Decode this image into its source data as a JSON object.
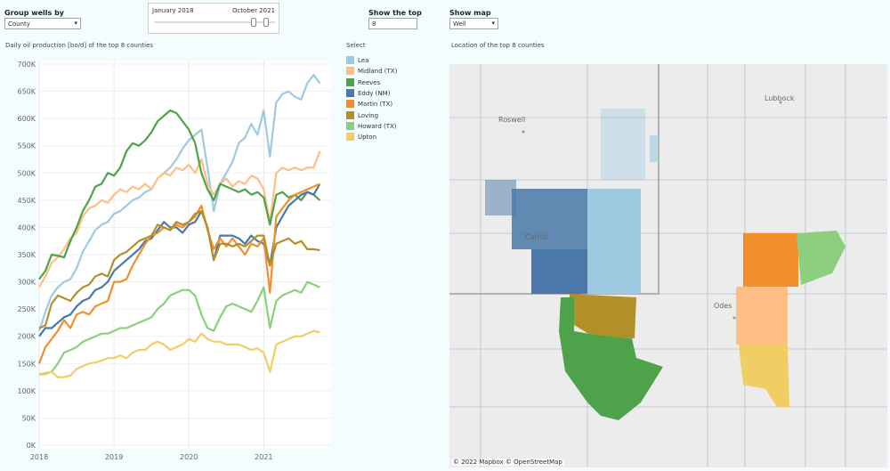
{
  "controls": {
    "group_by": {
      "label": "Group wells by",
      "value": "County"
    },
    "date_range": {
      "start": "January 2018",
      "end": "October 2021",
      "start_fraction": 0.82,
      "end_fraction": 0.93
    },
    "top": {
      "label": "Show the top",
      "value": "8"
    },
    "show_map": {
      "label": "Show map",
      "value": "Well"
    }
  },
  "chart_title": "Daily oil production [bo/d] of the top 8 counties",
  "legend_title": "Select",
  "map_title": "Location of the top 8 counties",
  "map": {
    "attribution": "© 2022 Mapbox  © OpenStreetMap",
    "cities": [
      "Roswell",
      "Lubbock",
      "Carlsb",
      "Odes"
    ]
  },
  "chart_data": {
    "type": "line",
    "title": "Daily oil production [bo/d] of the top 8 counties",
    "ylim": [
      0,
      700000
    ],
    "xlim": [
      2018,
      2021.9
    ],
    "y_ticks": [
      "0K",
      "50K",
      "100K",
      "150K",
      "200K",
      "250K",
      "300K",
      "350K",
      "400K",
      "450K",
      "500K",
      "550K",
      "600K",
      "650K",
      "700K"
    ],
    "x_ticks": [
      "2018",
      "2019",
      "2020",
      "2021"
    ],
    "x": [
      2018.0,
      2018.083,
      2018.167,
      2018.25,
      2018.333,
      2018.417,
      2018.5,
      2018.583,
      2018.667,
      2018.75,
      2018.833,
      2018.917,
      2019.0,
      2019.083,
      2019.167,
      2019.25,
      2019.333,
      2019.417,
      2019.5,
      2019.583,
      2019.667,
      2019.75,
      2019.833,
      2019.917,
      2020.0,
      2020.083,
      2020.167,
      2020.25,
      2020.333,
      2020.417,
      2020.5,
      2020.583,
      2020.667,
      2020.75,
      2020.833,
      2020.917,
      2021.0,
      2021.083,
      2021.167,
      2021.25,
      2021.333,
      2021.417,
      2021.5,
      2021.583,
      2021.667,
      2021.75
    ],
    "series": [
      {
        "name": "Lea",
        "color": "#9ecae1",
        "values": [
          210000,
          245000,
          275000,
          290000,
          300000,
          305000,
          325000,
          355000,
          375000,
          395000,
          405000,
          410000,
          425000,
          430000,
          440000,
          450000,
          455000,
          465000,
          470000,
          490000,
          500000,
          510000,
          525000,
          545000,
          560000,
          570000,
          580000,
          510000,
          430000,
          480000,
          500000,
          520000,
          555000,
          565000,
          590000,
          570000,
          615000,
          530000,
          630000,
          645000,
          650000,
          640000,
          635000,
          665000,
          680000,
          665000
        ]
      },
      {
        "name": "Midland (TX)",
        "color": "#fdbf85",
        "values": [
          290000,
          310000,
          335000,
          345000,
          360000,
          380000,
          390000,
          420000,
          435000,
          440000,
          450000,
          445000,
          460000,
          470000,
          465000,
          475000,
          470000,
          480000,
          470000,
          490000,
          500000,
          495000,
          510000,
          505000,
          515000,
          500000,
          525000,
          480000,
          460000,
          480000,
          490000,
          475000,
          485000,
          480000,
          495000,
          490000,
          470000,
          410000,
          500000,
          510000,
          505000,
          510000,
          505000,
          510000,
          510000,
          540000
        ]
      },
      {
        "name": "Reeves",
        "color": "#4ea24a",
        "values": [
          305000,
          320000,
          350000,
          348000,
          345000,
          375000,
          400000,
          430000,
          450000,
          475000,
          480000,
          500000,
          495000,
          510000,
          540000,
          555000,
          550000,
          560000,
          575000,
          595000,
          605000,
          615000,
          610000,
          595000,
          580000,
          555000,
          500000,
          470000,
          450000,
          480000,
          475000,
          470000,
          465000,
          470000,
          460000,
          465000,
          455000,
          405000,
          460000,
          465000,
          455000,
          460000,
          450000,
          465000,
          460000,
          450000
        ]
      },
      {
        "name": "Eddy (NM)",
        "color": "#4a78a8",
        "values": [
          200000,
          215000,
          215000,
          225000,
          235000,
          240000,
          255000,
          265000,
          270000,
          285000,
          290000,
          300000,
          320000,
          330000,
          340000,
          350000,
          360000,
          375000,
          380000,
          395000,
          410000,
          400000,
          400000,
          390000,
          405000,
          410000,
          430000,
          400000,
          340000,
          385000,
          385000,
          385000,
          380000,
          370000,
          385000,
          375000,
          370000,
          330000,
          400000,
          420000,
          440000,
          450000,
          460000,
          465000,
          460000,
          480000
        ]
      },
      {
        "name": "Martin (TX)",
        "color": "#f28e2b",
        "values": [
          150000,
          180000,
          195000,
          210000,
          230000,
          215000,
          240000,
          245000,
          240000,
          255000,
          260000,
          265000,
          300000,
          300000,
          305000,
          330000,
          350000,
          370000,
          385000,
          390000,
          400000,
          395000,
          405000,
          400000,
          410000,
          420000,
          440000,
          395000,
          360000,
          380000,
          365000,
          380000,
          365000,
          350000,
          370000,
          365000,
          380000,
          280000,
          420000,
          435000,
          450000,
          460000,
          465000,
          470000,
          475000,
          480000
        ]
      },
      {
        "name": "Loving",
        "color": "#b1902a",
        "values": [
          215000,
          220000,
          260000,
          275000,
          270000,
          265000,
          280000,
          290000,
          295000,
          310000,
          315000,
          310000,
          340000,
          350000,
          355000,
          365000,
          375000,
          380000,
          385000,
          405000,
          400000,
          395000,
          410000,
          405000,
          410000,
          425000,
          430000,
          400000,
          340000,
          370000,
          370000,
          365000,
          370000,
          365000,
          375000,
          385000,
          385000,
          330000,
          370000,
          375000,
          380000,
          370000,
          375000,
          360000,
          360000,
          358000
        ]
      },
      {
        "name": "Howard (TX)",
        "color": "#8ccf7e",
        "values": [
          130000,
          132000,
          135000,
          150000,
          170000,
          175000,
          180000,
          190000,
          195000,
          200000,
          205000,
          205000,
          210000,
          215000,
          215000,
          220000,
          225000,
          230000,
          235000,
          250000,
          260000,
          275000,
          280000,
          285000,
          285000,
          275000,
          240000,
          215000,
          210000,
          235000,
          255000,
          260000,
          255000,
          250000,
          245000,
          265000,
          290000,
          215000,
          265000,
          275000,
          280000,
          285000,
          280000,
          300000,
          295000,
          290000
        ]
      },
      {
        "name": "Upton",
        "color": "#f1ce63",
        "values": [
          130000,
          130000,
          135000,
          125000,
          125000,
          128000,
          140000,
          145000,
          150000,
          152000,
          155000,
          160000,
          160000,
          165000,
          160000,
          170000,
          175000,
          175000,
          185000,
          190000,
          185000,
          175000,
          180000,
          185000,
          195000,
          190000,
          205000,
          195000,
          190000,
          190000,
          185000,
          185000,
          185000,
          180000,
          175000,
          178000,
          170000,
          135000,
          185000,
          190000,
          195000,
          200000,
          200000,
          205000,
          210000,
          207000
        ]
      }
    ]
  }
}
